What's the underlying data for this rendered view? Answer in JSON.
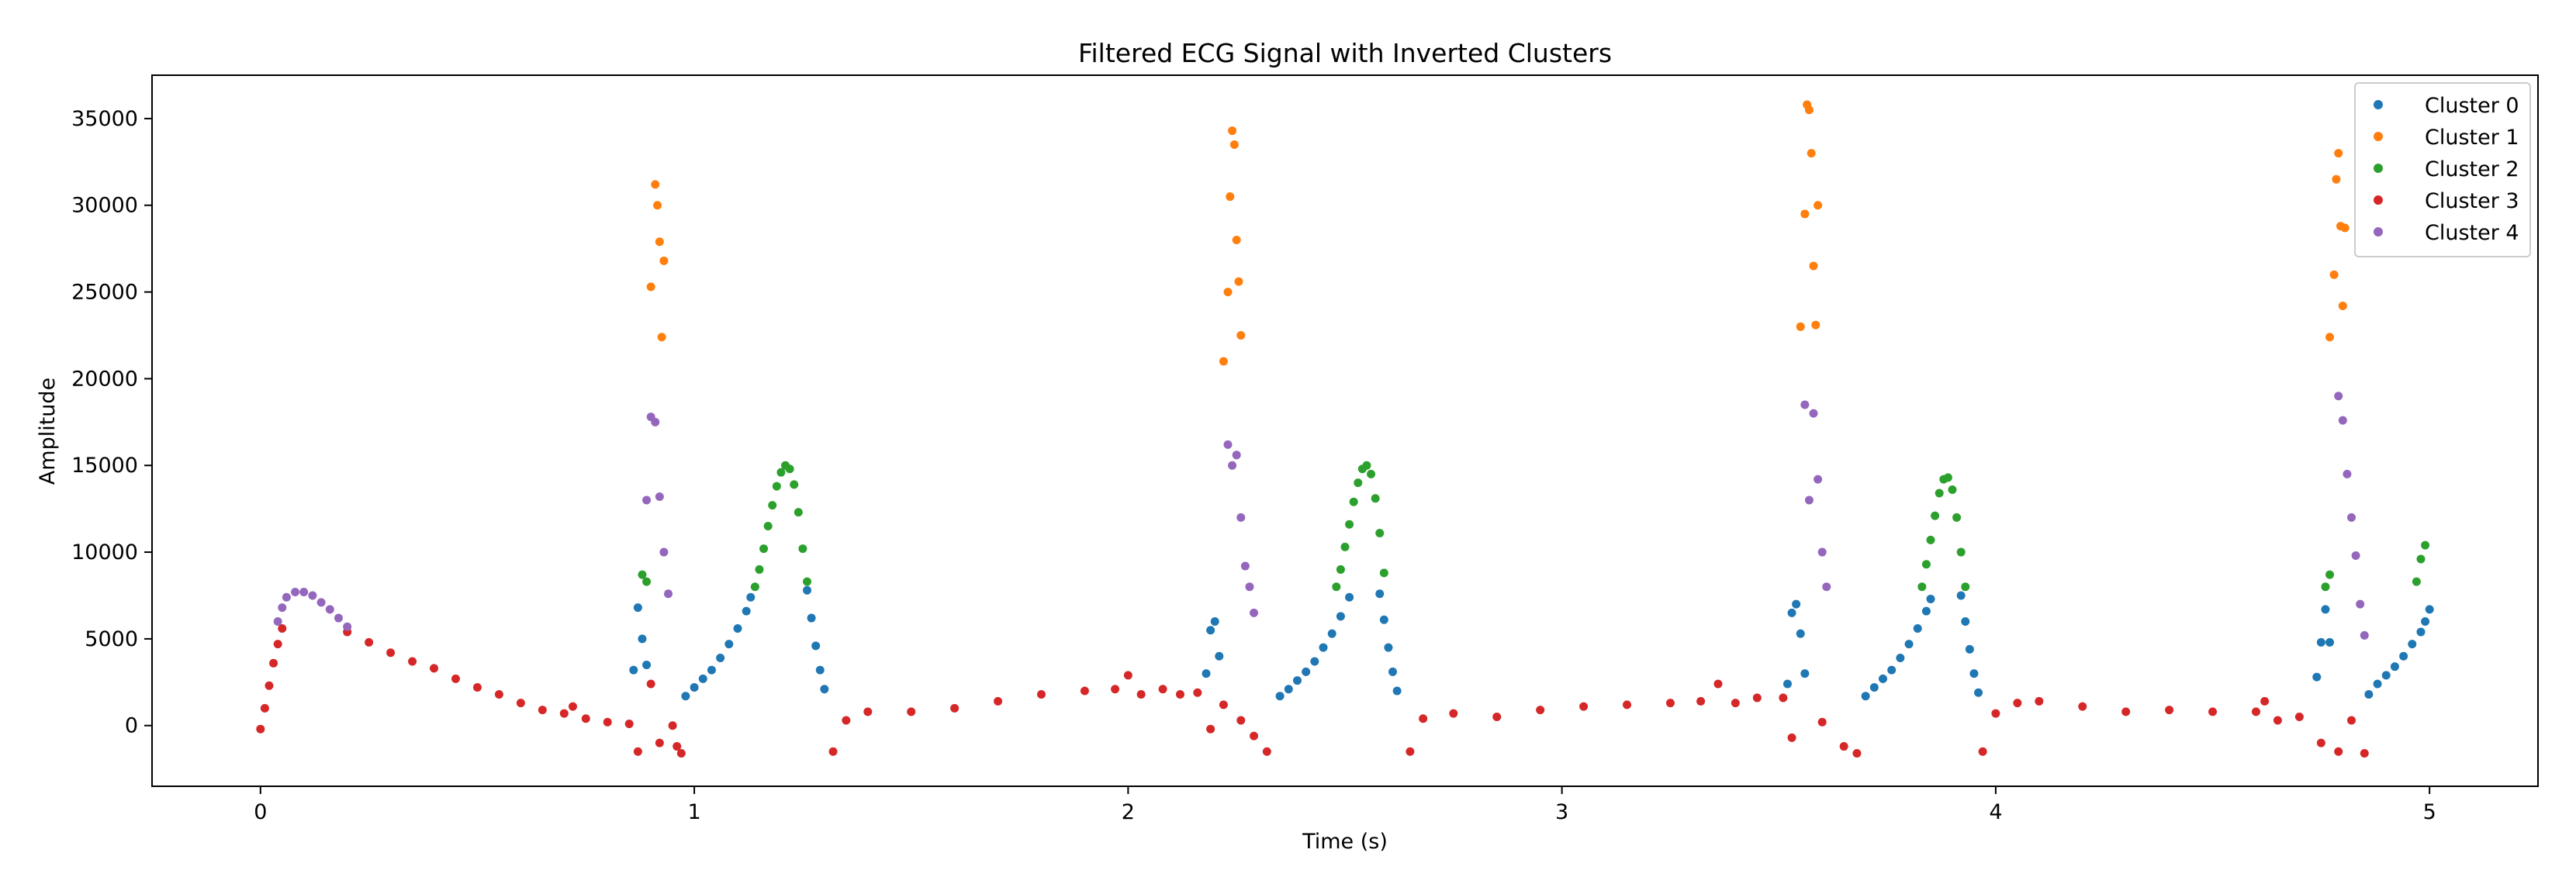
{
  "chart_data": {
    "type": "scatter",
    "title": "Filtered ECG Signal with Inverted Clusters",
    "xlabel": "Time (s)",
    "ylabel": "Amplitude",
    "xlim": [
      -0.25,
      5.25
    ],
    "ylim": [
      -3500,
      37500
    ],
    "x_ticks": [
      0,
      1,
      2,
      3,
      4,
      5
    ],
    "y_ticks": [
      0,
      5000,
      10000,
      15000,
      20000,
      25000,
      30000,
      35000
    ],
    "grid": false,
    "legend_position": "top-right",
    "series": [
      {
        "name": "Cluster 0",
        "color": "#1f77b4",
        "points": [
          [
            0.86,
            3200
          ],
          [
            0.87,
            6800
          ],
          [
            0.88,
            5000
          ],
          [
            0.89,
            3500
          ],
          [
            0.98,
            1700
          ],
          [
            1.0,
            2200
          ],
          [
            1.02,
            2700
          ],
          [
            1.04,
            3200
          ],
          [
            1.06,
            3900
          ],
          [
            1.08,
            4700
          ],
          [
            1.1,
            5600
          ],
          [
            1.12,
            6600
          ],
          [
            1.13,
            7400
          ],
          [
            1.26,
            7800
          ],
          [
            1.27,
            6200
          ],
          [
            1.28,
            4600
          ],
          [
            1.29,
            3200
          ],
          [
            1.3,
            2100
          ],
          [
            2.18,
            3000
          ],
          [
            2.19,
            5500
          ],
          [
            2.2,
            6000
          ],
          [
            2.21,
            4000
          ],
          [
            2.35,
            1700
          ],
          [
            2.37,
            2100
          ],
          [
            2.39,
            2600
          ],
          [
            2.41,
            3100
          ],
          [
            2.43,
            3700
          ],
          [
            2.45,
            4500
          ],
          [
            2.47,
            5300
          ],
          [
            2.49,
            6300
          ],
          [
            2.51,
            7400
          ],
          [
            2.58,
            7600
          ],
          [
            2.59,
            6100
          ],
          [
            2.6,
            4500
          ],
          [
            2.61,
            3100
          ],
          [
            2.62,
            2000
          ],
          [
            3.52,
            2400
          ],
          [
            3.53,
            6500
          ],
          [
            3.54,
            7000
          ],
          [
            3.55,
            5300
          ],
          [
            3.56,
            3000
          ],
          [
            3.7,
            1700
          ],
          [
            3.72,
            2200
          ],
          [
            3.74,
            2700
          ],
          [
            3.76,
            3200
          ],
          [
            3.78,
            3900
          ],
          [
            3.8,
            4700
          ],
          [
            3.82,
            5600
          ],
          [
            3.84,
            6600
          ],
          [
            3.85,
            7300
          ],
          [
            3.92,
            7500
          ],
          [
            3.93,
            6000
          ],
          [
            3.94,
            4400
          ],
          [
            3.95,
            3000
          ],
          [
            3.96,
            1900
          ],
          [
            4.74,
            2800
          ],
          [
            4.75,
            4800
          ],
          [
            4.76,
            6700
          ],
          [
            4.77,
            4800
          ],
          [
            4.86,
            1800
          ],
          [
            4.88,
            2400
          ],
          [
            4.9,
            2900
          ],
          [
            4.92,
            3400
          ],
          [
            4.94,
            4000
          ],
          [
            4.96,
            4700
          ],
          [
            4.98,
            5400
          ],
          [
            4.99,
            6000
          ],
          [
            5.0,
            6700
          ]
        ]
      },
      {
        "name": "Cluster 1",
        "color": "#ff7f0e",
        "points": [
          [
            0.9,
            25300
          ],
          [
            0.91,
            31200
          ],
          [
            0.915,
            30000
          ],
          [
            0.92,
            27900
          ],
          [
            0.925,
            22400
          ],
          [
            0.93,
            26800
          ],
          [
            2.22,
            21000
          ],
          [
            2.23,
            25000
          ],
          [
            2.235,
            30500
          ],
          [
            2.24,
            34300
          ],
          [
            2.245,
            33500
          ],
          [
            2.25,
            28000
          ],
          [
            2.255,
            25600
          ],
          [
            2.26,
            22500
          ],
          [
            3.55,
            23000
          ],
          [
            3.56,
            29500
          ],
          [
            3.565,
            35800
          ],
          [
            3.57,
            35500
          ],
          [
            3.575,
            33000
          ],
          [
            3.58,
            26500
          ],
          [
            3.585,
            23100
          ],
          [
            3.59,
            30000
          ],
          [
            4.77,
            22400
          ],
          [
            4.78,
            26000
          ],
          [
            4.785,
            31500
          ],
          [
            4.79,
            33000
          ],
          [
            4.795,
            28800
          ],
          [
            4.8,
            24200
          ],
          [
            4.805,
            28700
          ]
        ]
      },
      {
        "name": "Cluster 2",
        "color": "#2ca02c",
        "points": [
          [
            0.88,
            8700
          ],
          [
            0.89,
            8300
          ],
          [
            1.14,
            8000
          ],
          [
            1.15,
            9000
          ],
          [
            1.16,
            10200
          ],
          [
            1.17,
            11500
          ],
          [
            1.18,
            12700
          ],
          [
            1.19,
            13800
          ],
          [
            1.2,
            14600
          ],
          [
            1.21,
            15000
          ],
          [
            1.22,
            14800
          ],
          [
            1.23,
            13900
          ],
          [
            1.24,
            12300
          ],
          [
            1.25,
            10200
          ],
          [
            1.26,
            8300
          ],
          [
            2.48,
            8000
          ],
          [
            2.49,
            9000
          ],
          [
            2.5,
            10300
          ],
          [
            2.51,
            11600
          ],
          [
            2.52,
            12900
          ],
          [
            2.53,
            14000
          ],
          [
            2.54,
            14800
          ],
          [
            2.55,
            15000
          ],
          [
            2.56,
            14500
          ],
          [
            2.57,
            13100
          ],
          [
            2.58,
            11100
          ],
          [
            2.59,
            8800
          ],
          [
            3.83,
            8000
          ],
          [
            3.84,
            9300
          ],
          [
            3.85,
            10700
          ],
          [
            3.86,
            12100
          ],
          [
            3.87,
            13400
          ],
          [
            3.88,
            14200
          ],
          [
            3.89,
            14300
          ],
          [
            3.9,
            13600
          ],
          [
            3.91,
            12000
          ],
          [
            3.92,
            10000
          ],
          [
            3.93,
            8000
          ],
          [
            4.76,
            8000
          ],
          [
            4.77,
            8700
          ],
          [
            4.97,
            8300
          ],
          [
            4.98,
            9600
          ],
          [
            4.99,
            10400
          ]
        ]
      },
      {
        "name": "Cluster 3",
        "color": "#d62728",
        "points": [
          [
            0.0,
            -200
          ],
          [
            0.01,
            1000
          ],
          [
            0.02,
            2300
          ],
          [
            0.03,
            3600
          ],
          [
            0.04,
            4700
          ],
          [
            0.05,
            5600
          ],
          [
            0.2,
            5400
          ],
          [
            0.25,
            4800
          ],
          [
            0.3,
            4200
          ],
          [
            0.35,
            3700
          ],
          [
            0.4,
            3300
          ],
          [
            0.45,
            2700
          ],
          [
            0.5,
            2200
          ],
          [
            0.55,
            1800
          ],
          [
            0.6,
            1300
          ],
          [
            0.65,
            900
          ],
          [
            0.7,
            700
          ],
          [
            0.72,
            1100
          ],
          [
            0.75,
            400
          ],
          [
            0.8,
            200
          ],
          [
            0.85,
            100
          ],
          [
            0.87,
            -1500
          ],
          [
            0.9,
            2400
          ],
          [
            0.92,
            -1000
          ],
          [
            0.95,
            0
          ],
          [
            0.96,
            -1200
          ],
          [
            0.97,
            -1600
          ],
          [
            1.32,
            -1500
          ],
          [
            1.35,
            300
          ],
          [
            1.4,
            800
          ],
          [
            1.5,
            800
          ],
          [
            1.6,
            1000
          ],
          [
            1.7,
            1400
          ],
          [
            1.8,
            1800
          ],
          [
            1.9,
            2000
          ],
          [
            1.97,
            2100
          ],
          [
            2.0,
            2900
          ],
          [
            2.03,
            1800
          ],
          [
            2.08,
            2100
          ],
          [
            2.12,
            1800
          ],
          [
            2.16,
            1900
          ],
          [
            2.19,
            -200
          ],
          [
            2.22,
            1200
          ],
          [
            2.26,
            300
          ],
          [
            2.29,
            -600
          ],
          [
            2.32,
            -1500
          ],
          [
            2.65,
            -1500
          ],
          [
            2.68,
            400
          ],
          [
            2.75,
            700
          ],
          [
            2.85,
            500
          ],
          [
            2.95,
            900
          ],
          [
            3.05,
            1100
          ],
          [
            3.15,
            1200
          ],
          [
            3.25,
            1300
          ],
          [
            3.32,
            1400
          ],
          [
            3.36,
            2400
          ],
          [
            3.4,
            1300
          ],
          [
            3.45,
            1600
          ],
          [
            3.51,
            1600
          ],
          [
            3.53,
            -700
          ],
          [
            3.6,
            200
          ],
          [
            3.65,
            -1200
          ],
          [
            3.68,
            -1600
          ],
          [
            3.97,
            -1500
          ],
          [
            4.0,
            700
          ],
          [
            4.05,
            1300
          ],
          [
            4.1,
            1400
          ],
          [
            4.2,
            1100
          ],
          [
            4.3,
            800
          ],
          [
            4.4,
            900
          ],
          [
            4.5,
            800
          ],
          [
            4.6,
            800
          ],
          [
            4.62,
            1400
          ],
          [
            4.65,
            300
          ],
          [
            4.7,
            500
          ],
          [
            4.75,
            -1000
          ],
          [
            4.79,
            -1500
          ],
          [
            4.82,
            300
          ],
          [
            4.85,
            -1600
          ]
        ]
      },
      {
        "name": "Cluster 4",
        "color": "#9467bd",
        "points": [
          [
            0.04,
            6000
          ],
          [
            0.05,
            6800
          ],
          [
            0.06,
            7400
          ],
          [
            0.08,
            7700
          ],
          [
            0.1,
            7700
          ],
          [
            0.12,
            7500
          ],
          [
            0.14,
            7100
          ],
          [
            0.16,
            6700
          ],
          [
            0.18,
            6200
          ],
          [
            0.2,
            5700
          ],
          [
            0.89,
            13000
          ],
          [
            0.9,
            17800
          ],
          [
            0.91,
            17500
          ],
          [
            0.92,
            13200
          ],
          [
            0.93,
            10000
          ],
          [
            0.94,
            7600
          ],
          [
            2.23,
            16200
          ],
          [
            2.24,
            15000
          ],
          [
            2.25,
            15600
          ],
          [
            2.26,
            12000
          ],
          [
            2.27,
            9200
          ],
          [
            2.28,
            8000
          ],
          [
            2.29,
            6500
          ],
          [
            3.56,
            18500
          ],
          [
            3.57,
            13000
          ],
          [
            3.58,
            18000
          ],
          [
            3.59,
            14200
          ],
          [
            3.6,
            10000
          ],
          [
            3.61,
            8000
          ],
          [
            4.79,
            19000
          ],
          [
            4.8,
            17600
          ],
          [
            4.81,
            14500
          ],
          [
            4.82,
            12000
          ],
          [
            4.83,
            9800
          ],
          [
            4.84,
            7000
          ],
          [
            4.85,
            5200
          ]
        ]
      }
    ]
  }
}
